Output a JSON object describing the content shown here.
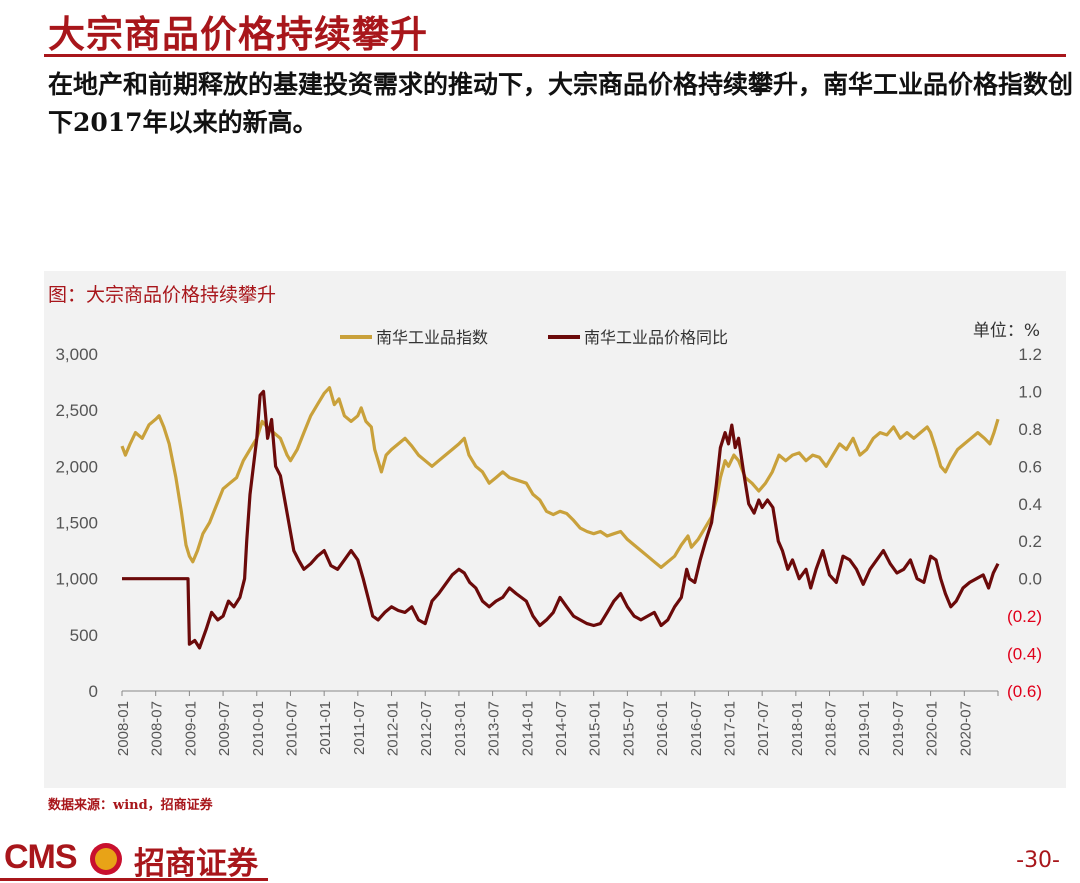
{
  "header": {
    "title": "大宗商品价格持续攀升",
    "subtitle": "在地产和前期释放的基建投资需求的推动下，大宗商品价格持续攀升，南华工业品价格指数创下2017年以来的新高。"
  },
  "chart_title": "图：大宗商品价格持续攀升",
  "source": "数据来源：wind，招商证券",
  "footer": {
    "logo_text": "CMS",
    "logo_cn": "招商证券",
    "page": "-30-"
  },
  "colors": {
    "brand": "#a8161b",
    "index_line": "#c9a13b",
    "yoy_line": "#6b0a0a",
    "negative_label": "#e0001b"
  },
  "chart_data": {
    "type": "line",
    "unit_label": "单位：%",
    "x_labels": [
      "2008-01",
      "2008-07",
      "2009-01",
      "2009-07",
      "2010-01",
      "2010-07",
      "2011-01",
      "2011-07",
      "2012-01",
      "2012-07",
      "2013-01",
      "2013-07",
      "2014-01",
      "2014-07",
      "2015-01",
      "2015-07",
      "2016-01",
      "2016-07",
      "2017-01",
      "2017-07",
      "2018-01",
      "2018-07",
      "2019-01",
      "2019-07",
      "2020-01",
      "2020-07"
    ],
    "x_range": [
      2008.0,
      2021.0
    ],
    "y_left": {
      "range": [
        0,
        3000
      ],
      "ticks": [
        0,
        500,
        1000,
        1500,
        2000,
        2500,
        3000
      ],
      "tick_labels": [
        "0",
        "500",
        "1,000",
        "1,500",
        "2,000",
        "2,500",
        "3,000"
      ]
    },
    "y_right": {
      "range": [
        -0.6,
        1.2
      ],
      "ticks": [
        -0.6,
        -0.4,
        -0.2,
        0.0,
        0.2,
        0.4,
        0.6,
        0.8,
        1.0,
        1.2
      ],
      "tick_labels": [
        "(0.6)",
        "(0.4)",
        "(0.2)",
        "0.0",
        "0.2",
        "0.4",
        "0.6",
        "0.8",
        "1.0",
        "1.2"
      ]
    },
    "legend_placement": "top-center",
    "series": [
      {
        "name": "南华工业品指数",
        "axis": "left",
        "points": [
          [
            2008.0,
            2180
          ],
          [
            2008.05,
            2100
          ],
          [
            2008.12,
            2200
          ],
          [
            2008.2,
            2300
          ],
          [
            2008.3,
            2250
          ],
          [
            2008.4,
            2370
          ],
          [
            2008.5,
            2420
          ],
          [
            2008.55,
            2450
          ],
          [
            2008.62,
            2350
          ],
          [
            2008.7,
            2200
          ],
          [
            2008.8,
            1900
          ],
          [
            2008.88,
            1600
          ],
          [
            2008.95,
            1300
          ],
          [
            2009.0,
            1200
          ],
          [
            2009.05,
            1150
          ],
          [
            2009.12,
            1250
          ],
          [
            2009.2,
            1400
          ],
          [
            2009.3,
            1500
          ],
          [
            2009.4,
            1650
          ],
          [
            2009.5,
            1800
          ],
          [
            2009.6,
            1850
          ],
          [
            2009.7,
            1900
          ],
          [
            2009.8,
            2050
          ],
          [
            2009.9,
            2150
          ],
          [
            2010.0,
            2250
          ],
          [
            2010.08,
            2400
          ],
          [
            2010.15,
            2350
          ],
          [
            2010.25,
            2300
          ],
          [
            2010.35,
            2250
          ],
          [
            2010.45,
            2100
          ],
          [
            2010.5,
            2050
          ],
          [
            2010.6,
            2150
          ],
          [
            2010.7,
            2300
          ],
          [
            2010.8,
            2450
          ],
          [
            2010.9,
            2550
          ],
          [
            2011.0,
            2650
          ],
          [
            2011.08,
            2700
          ],
          [
            2011.15,
            2550
          ],
          [
            2011.22,
            2600
          ],
          [
            2011.3,
            2450
          ],
          [
            2011.4,
            2400
          ],
          [
            2011.5,
            2450
          ],
          [
            2011.55,
            2520
          ],
          [
            2011.62,
            2400
          ],
          [
            2011.7,
            2350
          ],
          [
            2011.75,
            2150
          ],
          [
            2011.8,
            2050
          ],
          [
            2011.85,
            1950
          ],
          [
            2011.92,
            2100
          ],
          [
            2012.0,
            2150
          ],
          [
            2012.1,
            2200
          ],
          [
            2012.2,
            2250
          ],
          [
            2012.3,
            2180
          ],
          [
            2012.4,
            2100
          ],
          [
            2012.5,
            2050
          ],
          [
            2012.6,
            2000
          ],
          [
            2012.7,
            2050
          ],
          [
            2012.8,
            2100
          ],
          [
            2012.9,
            2150
          ],
          [
            2013.0,
            2200
          ],
          [
            2013.08,
            2250
          ],
          [
            2013.15,
            2100
          ],
          [
            2013.25,
            2000
          ],
          [
            2013.35,
            1950
          ],
          [
            2013.45,
            1850
          ],
          [
            2013.55,
            1900
          ],
          [
            2013.65,
            1950
          ],
          [
            2013.75,
            1900
          ],
          [
            2013.85,
            1880
          ],
          [
            2014.0,
            1850
          ],
          [
            2014.1,
            1750
          ],
          [
            2014.2,
            1700
          ],
          [
            2014.3,
            1600
          ],
          [
            2014.4,
            1570
          ],
          [
            2014.5,
            1600
          ],
          [
            2014.6,
            1580
          ],
          [
            2014.7,
            1520
          ],
          [
            2014.8,
            1450
          ],
          [
            2014.9,
            1420
          ],
          [
            2015.0,
            1400
          ],
          [
            2015.1,
            1420
          ],
          [
            2015.2,
            1380
          ],
          [
            2015.3,
            1400
          ],
          [
            2015.4,
            1420
          ],
          [
            2015.5,
            1350
          ],
          [
            2015.6,
            1300
          ],
          [
            2015.7,
            1250
          ],
          [
            2015.8,
            1200
          ],
          [
            2015.9,
            1150
          ],
          [
            2016.0,
            1100
          ],
          [
            2016.1,
            1150
          ],
          [
            2016.2,
            1200
          ],
          [
            2016.3,
            1300
          ],
          [
            2016.4,
            1380
          ],
          [
            2016.45,
            1280
          ],
          [
            2016.55,
            1350
          ],
          [
            2016.65,
            1450
          ],
          [
            2016.75,
            1550
          ],
          [
            2016.82,
            1700
          ],
          [
            2016.88,
            1900
          ],
          [
            2016.95,
            2050
          ],
          [
            2017.0,
            2000
          ],
          [
            2017.08,
            2100
          ],
          [
            2017.15,
            2050
          ],
          [
            2017.25,
            1900
          ],
          [
            2017.35,
            1850
          ],
          [
            2017.45,
            1780
          ],
          [
            2017.55,
            1850
          ],
          [
            2017.65,
            1950
          ],
          [
            2017.75,
            2100
          ],
          [
            2017.85,
            2050
          ],
          [
            2017.95,
            2100
          ],
          [
            2018.05,
            2120
          ],
          [
            2018.15,
            2050
          ],
          [
            2018.25,
            2100
          ],
          [
            2018.35,
            2080
          ],
          [
            2018.45,
            2000
          ],
          [
            2018.55,
            2100
          ],
          [
            2018.65,
            2200
          ],
          [
            2018.75,
            2150
          ],
          [
            2018.85,
            2250
          ],
          [
            2018.95,
            2100
          ],
          [
            2019.05,
            2150
          ],
          [
            2019.15,
            2250
          ],
          [
            2019.25,
            2300
          ],
          [
            2019.35,
            2280
          ],
          [
            2019.45,
            2350
          ],
          [
            2019.55,
            2250
          ],
          [
            2019.65,
            2300
          ],
          [
            2019.75,
            2250
          ],
          [
            2019.85,
            2300
          ],
          [
            2019.95,
            2350
          ],
          [
            2020.0,
            2300
          ],
          [
            2020.08,
            2150
          ],
          [
            2020.15,
            2000
          ],
          [
            2020.22,
            1950
          ],
          [
            2020.3,
            2050
          ],
          [
            2020.4,
            2150
          ],
          [
            2020.5,
            2200
          ],
          [
            2020.6,
            2250
          ],
          [
            2020.7,
            2300
          ],
          [
            2020.8,
            2250
          ],
          [
            2020.88,
            2200
          ],
          [
            2020.94,
            2300
          ],
          [
            2021.0,
            2420
          ]
        ]
      },
      {
        "name": "南华工业品价格同比",
        "axis": "right",
        "points": [
          [
            2008.0,
            0.0
          ],
          [
            2008.5,
            0.0
          ],
          [
            2008.98,
            0.0
          ],
          [
            2009.0,
            -0.35
          ],
          [
            2009.08,
            -0.33
          ],
          [
            2009.15,
            -0.37
          ],
          [
            2009.25,
            -0.27
          ],
          [
            2009.33,
            -0.18
          ],
          [
            2009.42,
            -0.22
          ],
          [
            2009.5,
            -0.2
          ],
          [
            2009.58,
            -0.12
          ],
          [
            2009.66,
            -0.15
          ],
          [
            2009.75,
            -0.1
          ],
          [
            2009.82,
            0.0
          ],
          [
            2009.85,
            0.2
          ],
          [
            2009.9,
            0.45
          ],
          [
            2009.95,
            0.6
          ],
          [
            2010.0,
            0.75
          ],
          [
            2010.05,
            0.98
          ],
          [
            2010.1,
            1.0
          ],
          [
            2010.16,
            0.75
          ],
          [
            2010.22,
            0.85
          ],
          [
            2010.28,
            0.6
          ],
          [
            2010.35,
            0.55
          ],
          [
            2010.45,
            0.35
          ],
          [
            2010.55,
            0.15
          ],
          [
            2010.62,
            0.1
          ],
          [
            2010.7,
            0.05
          ],
          [
            2010.8,
            0.08
          ],
          [
            2010.9,
            0.12
          ],
          [
            2011.0,
            0.15
          ],
          [
            2011.1,
            0.07
          ],
          [
            2011.2,
            0.05
          ],
          [
            2011.3,
            0.1
          ],
          [
            2011.4,
            0.15
          ],
          [
            2011.5,
            0.1
          ],
          [
            2011.58,
            0.0
          ],
          [
            2011.65,
            -0.1
          ],
          [
            2011.72,
            -0.2
          ],
          [
            2011.8,
            -0.22
          ],
          [
            2011.9,
            -0.18
          ],
          [
            2012.0,
            -0.15
          ],
          [
            2012.1,
            -0.17
          ],
          [
            2012.2,
            -0.18
          ],
          [
            2012.3,
            -0.15
          ],
          [
            2012.4,
            -0.22
          ],
          [
            2012.5,
            -0.24
          ],
          [
            2012.6,
            -0.12
          ],
          [
            2012.7,
            -0.08
          ],
          [
            2012.8,
            -0.03
          ],
          [
            2012.9,
            0.02
          ],
          [
            2013.0,
            0.05
          ],
          [
            2013.08,
            0.03
          ],
          [
            2013.16,
            -0.02
          ],
          [
            2013.25,
            -0.05
          ],
          [
            2013.35,
            -0.12
          ],
          [
            2013.45,
            -0.15
          ],
          [
            2013.55,
            -0.12
          ],
          [
            2013.65,
            -0.1
          ],
          [
            2013.75,
            -0.05
          ],
          [
            2013.85,
            -0.08
          ],
          [
            2014.0,
            -0.12
          ],
          [
            2014.1,
            -0.2
          ],
          [
            2014.2,
            -0.25
          ],
          [
            2014.3,
            -0.22
          ],
          [
            2014.4,
            -0.18
          ],
          [
            2014.5,
            -0.1
          ],
          [
            2014.6,
            -0.15
          ],
          [
            2014.7,
            -0.2
          ],
          [
            2014.8,
            -0.22
          ],
          [
            2014.9,
            -0.24
          ],
          [
            2015.0,
            -0.25
          ],
          [
            2015.1,
            -0.24
          ],
          [
            2015.2,
            -0.18
          ],
          [
            2015.3,
            -0.12
          ],
          [
            2015.4,
            -0.08
          ],
          [
            2015.5,
            -0.15
          ],
          [
            2015.6,
            -0.2
          ],
          [
            2015.7,
            -0.22
          ],
          [
            2015.8,
            -0.2
          ],
          [
            2015.9,
            -0.18
          ],
          [
            2016.0,
            -0.25
          ],
          [
            2016.1,
            -0.22
          ],
          [
            2016.2,
            -0.15
          ],
          [
            2016.3,
            -0.1
          ],
          [
            2016.38,
            0.05
          ],
          [
            2016.42,
            0.0
          ],
          [
            2016.5,
            -0.02
          ],
          [
            2016.58,
            0.1
          ],
          [
            2016.66,
            0.2
          ],
          [
            2016.75,
            0.3
          ],
          [
            2016.82,
            0.5
          ],
          [
            2016.88,
            0.7
          ],
          [
            2016.95,
            0.78
          ],
          [
            2017.0,
            0.72
          ],
          [
            2017.05,
            0.82
          ],
          [
            2017.1,
            0.7
          ],
          [
            2017.15,
            0.75
          ],
          [
            2017.22,
            0.58
          ],
          [
            2017.3,
            0.4
          ],
          [
            2017.38,
            0.35
          ],
          [
            2017.45,
            0.42
          ],
          [
            2017.5,
            0.38
          ],
          [
            2017.58,
            0.42
          ],
          [
            2017.66,
            0.38
          ],
          [
            2017.74,
            0.2
          ],
          [
            2017.8,
            0.15
          ],
          [
            2017.88,
            0.05
          ],
          [
            2017.95,
            0.1
          ],
          [
            2018.05,
            0.0
          ],
          [
            2018.15,
            0.05
          ],
          [
            2018.22,
            -0.05
          ],
          [
            2018.3,
            0.05
          ],
          [
            2018.4,
            0.15
          ],
          [
            2018.5,
            0.02
          ],
          [
            2018.6,
            -0.02
          ],
          [
            2018.7,
            0.12
          ],
          [
            2018.8,
            0.1
          ],
          [
            2018.9,
            0.05
          ],
          [
            2019.0,
            -0.03
          ],
          [
            2019.1,
            0.05
          ],
          [
            2019.2,
            0.1
          ],
          [
            2019.3,
            0.15
          ],
          [
            2019.4,
            0.08
          ],
          [
            2019.5,
            0.03
          ],
          [
            2019.6,
            0.05
          ],
          [
            2019.7,
            0.1
          ],
          [
            2019.8,
            0.0
          ],
          [
            2019.9,
            -0.02
          ],
          [
            2020.0,
            0.12
          ],
          [
            2020.08,
            0.1
          ],
          [
            2020.15,
            0.0
          ],
          [
            2020.22,
            -0.08
          ],
          [
            2020.3,
            -0.15
          ],
          [
            2020.38,
            -0.12
          ],
          [
            2020.48,
            -0.05
          ],
          [
            2020.58,
            -0.02
          ],
          [
            2020.68,
            0.0
          ],
          [
            2020.78,
            0.02
          ],
          [
            2020.86,
            -0.05
          ],
          [
            2020.93,
            0.03
          ],
          [
            2021.0,
            0.08
          ]
        ]
      }
    ]
  }
}
